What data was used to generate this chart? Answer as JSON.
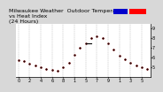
{
  "title": "Milwaukee Weather  Outdoor Temperature\nvs Heat Index\n(24 Hours)",
  "bg_color": "#d8d8d8",
  "plot_bg": "#ffffff",
  "legend_blue": "#0000cc",
  "legend_red": "#ff0000",
  "hours": [
    0,
    1,
    2,
    3,
    4,
    5,
    6,
    7,
    8,
    9,
    10,
    11,
    12,
    13,
    14,
    15,
    16,
    17,
    18,
    19,
    20,
    21,
    22,
    23
  ],
  "xtick_hours": [
    0,
    2,
    4,
    6,
    8,
    10,
    12,
    14,
    16,
    18,
    20,
    22
  ],
  "xtick_labels": [
    "0",
    "2",
    "4",
    "6",
    "8",
    "1",
    "5",
    "7",
    "9",
    "1",
    "3",
    "5"
  ],
  "temp": [
    57,
    56,
    54,
    52,
    50,
    48,
    47,
    46,
    50,
    55,
    63,
    70,
    75,
    80,
    82,
    80,
    75,
    68,
    62,
    58,
    55,
    52,
    50,
    48
  ],
  "heat_index": [
    57,
    56,
    54,
    52,
    50,
    48,
    47,
    46,
    50,
    55,
    63,
    70,
    75,
    80,
    82,
    80,
    75,
    68,
    62,
    58,
    55,
    52,
    50,
    48
  ],
  "heat_line_x": [
    12,
    13
  ],
  "heat_line_y": [
    75,
    75
  ],
  "ylim": [
    40,
    95
  ],
  "yticks": [
    50,
    60,
    70,
    80,
    90
  ],
  "ytick_labels": [
    "5",
    "6",
    "7",
    "8",
    "9"
  ],
  "grid_color": "#999999",
  "grid_hours": [
    0,
    2,
    4,
    6,
    8,
    10,
    12,
    14,
    16,
    18,
    20,
    22
  ],
  "temp_color": "#ff0000",
  "heat_color": "#000000",
  "title_fontsize": 4.5,
  "tick_fontsize": 3.5
}
